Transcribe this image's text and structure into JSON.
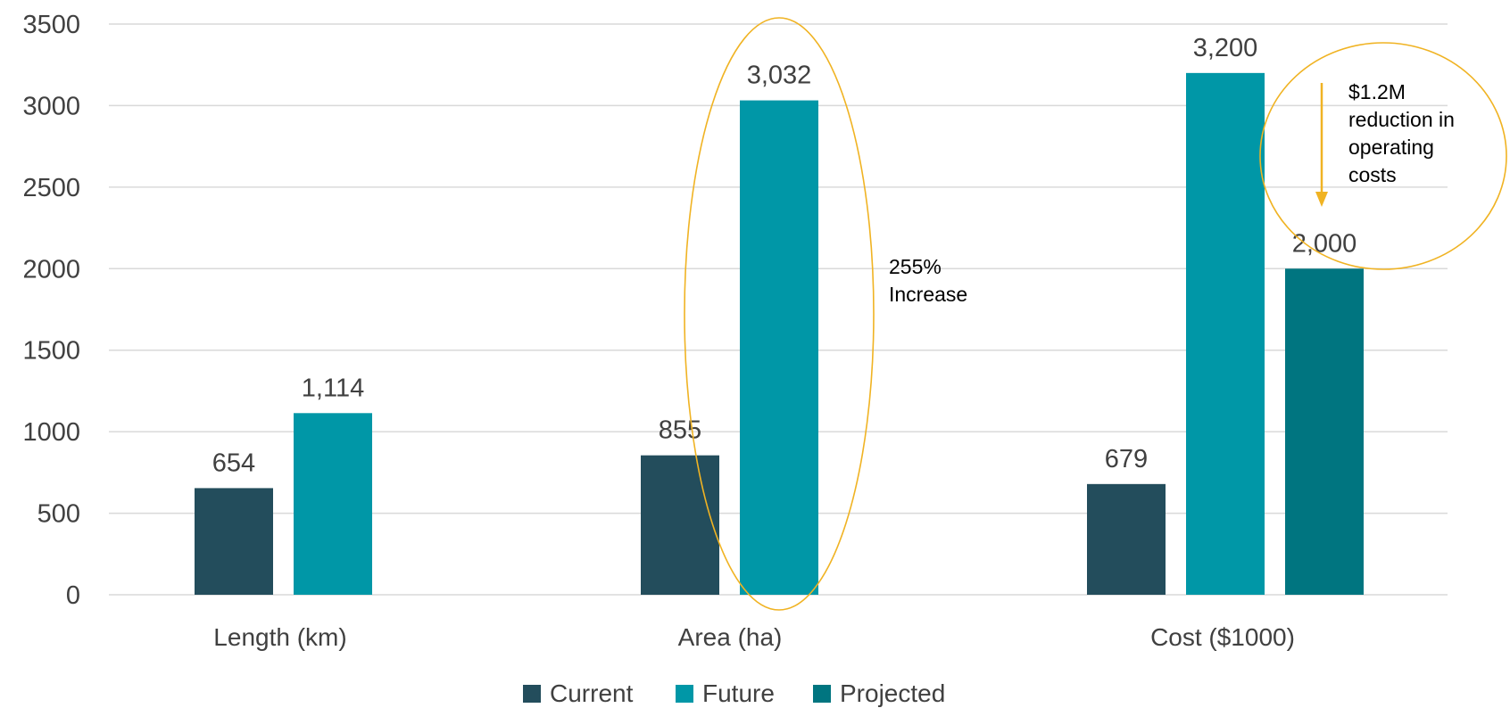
{
  "colors": {
    "current": "#234d5c",
    "future": "#0097a7",
    "projected": "#007580",
    "highlight": "#f0b323",
    "grid": "#d9d9d9",
    "text": "#404040"
  },
  "chart_data": {
    "type": "bar",
    "categories": [
      "Length (km)",
      "Area (ha)",
      "Cost ($1000)"
    ],
    "series": [
      {
        "name": "Current",
        "values": [
          654,
          855,
          679
        ],
        "labels": [
          "654",
          "855",
          "679"
        ]
      },
      {
        "name": "Future",
        "values": [
          1114,
          3032,
          3200
        ],
        "labels": [
          "1,114",
          "3,032",
          "3,200"
        ]
      },
      {
        "name": "Projected",
        "values": [
          null,
          null,
          2000
        ],
        "labels": [
          "",
          "",
          "2,000"
        ]
      }
    ],
    "ylim": [
      0,
      3500
    ],
    "yticks": [
      0,
      500,
      1000,
      1500,
      2000,
      2500,
      3000,
      3500
    ],
    "grid": true,
    "legend": "bottom-center",
    "title": "",
    "xlabel": "",
    "ylabel": "",
    "annotations": [
      {
        "id": "area-increase",
        "lines": [
          "255%",
          "Increase"
        ]
      },
      {
        "id": "cost-reduction",
        "lines": [
          "$1.2M",
          "reduction in",
          "operating",
          "costs"
        ]
      }
    ]
  }
}
